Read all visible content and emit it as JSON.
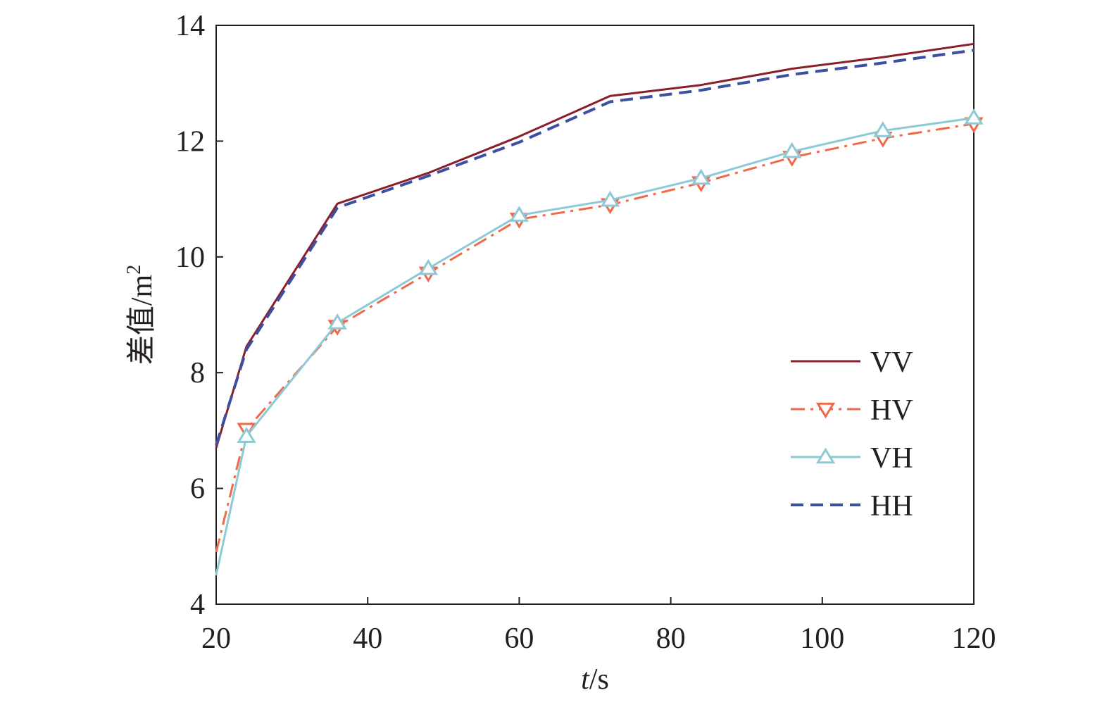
{
  "chart_data": {
    "type": "line",
    "xlabel_italic": "t",
    "xlabel_unit": "/s",
    "ylabel": "差值/m",
    "ylabel_sup": "2",
    "xlim": [
      20,
      120
    ],
    "ylim": [
      4,
      14
    ],
    "xticks": [
      20,
      40,
      60,
      80,
      100,
      120
    ],
    "yticks": [
      4,
      6,
      8,
      10,
      12,
      14
    ],
    "grid": false,
    "legend_position": "right",
    "series": [
      {
        "name": "VV",
        "color": "#8b1e2b",
        "style": "solid",
        "marker": "none",
        "x": [
          20,
          24,
          36,
          48,
          60,
          72,
          84,
          96,
          108,
          120
        ],
        "y": [
          6.7,
          8.45,
          10.92,
          11.45,
          12.08,
          12.78,
          12.97,
          13.25,
          13.45,
          13.68
        ]
      },
      {
        "name": "HV",
        "color": "#ef6a4b",
        "style": "dashdot",
        "marker": "triangle-down",
        "x": [
          20,
          24,
          36,
          48,
          60,
          72,
          84,
          96,
          108,
          120
        ],
        "y": [
          4.9,
          7.02,
          8.8,
          9.72,
          10.65,
          10.9,
          11.28,
          11.72,
          12.05,
          12.3
        ]
      },
      {
        "name": "VH",
        "color": "#8ec9d6",
        "style": "solid",
        "marker": "triangle-up",
        "x": [
          20,
          24,
          36,
          48,
          60,
          72,
          84,
          96,
          108,
          120
        ],
        "y": [
          4.5,
          6.9,
          8.86,
          9.8,
          10.72,
          10.98,
          11.36,
          11.82,
          12.18,
          12.4
        ]
      },
      {
        "name": "HH",
        "color": "#3d4fa0",
        "style": "dashed",
        "marker": "none",
        "x": [
          20,
          24,
          36,
          48,
          60,
          72,
          84,
          96,
          108,
          120
        ],
        "y": [
          6.75,
          8.4,
          10.85,
          11.4,
          11.98,
          12.68,
          12.88,
          13.15,
          13.35,
          13.57
        ]
      }
    ]
  }
}
